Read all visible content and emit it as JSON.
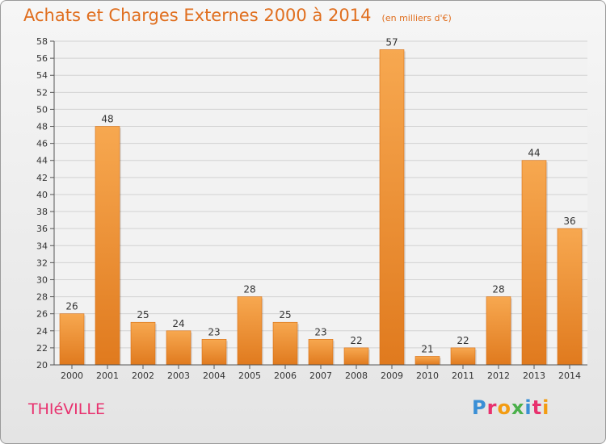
{
  "title": "Achats et Charges Externes 2000 à 2014",
  "subtitle": "(en milliers d'€)",
  "commune": "THIéVILLE",
  "brand": {
    "text": "Proxiti",
    "letter_colors": [
      "#3a8fd6",
      "#e8316e",
      "#f39c12",
      "#4bb04b",
      "#3a8fd6",
      "#e8316e",
      "#f39c12"
    ]
  },
  "colors": {
    "bar_light": "#f7a850",
    "bar_dark": "#e07a1e",
    "title": "#e06e1e",
    "grid": "#d2d2d2"
  },
  "chart_data": {
    "type": "bar",
    "title": "Achats et Charges Externes 2000 à 2014",
    "subtitle": "(en milliers d'€)",
    "categories": [
      "2000",
      "2001",
      "2002",
      "2003",
      "2004",
      "2005",
      "2006",
      "2007",
      "2008",
      "2009",
      "2010",
      "2011",
      "2012",
      "2013",
      "2014"
    ],
    "values": [
      26,
      48,
      25,
      24,
      23,
      28,
      25,
      23,
      22,
      57,
      21,
      22,
      28,
      44,
      36
    ],
    "data_labels": [
      "26",
      "48",
      "25",
      "24",
      "23",
      "28",
      "25",
      "23",
      "22",
      "57",
      "21",
      "22",
      "28",
      "44",
      "36"
    ],
    "ylim": [
      20,
      58
    ],
    "y_ticks": [
      "20",
      "22",
      "24",
      "26",
      "28",
      "30",
      "32",
      "34",
      "36",
      "38",
      "40",
      "42",
      "44",
      "46",
      "48",
      "50",
      "52",
      "54",
      "56",
      "58"
    ],
    "xlabel": "",
    "ylabel": "",
    "grid": true
  }
}
